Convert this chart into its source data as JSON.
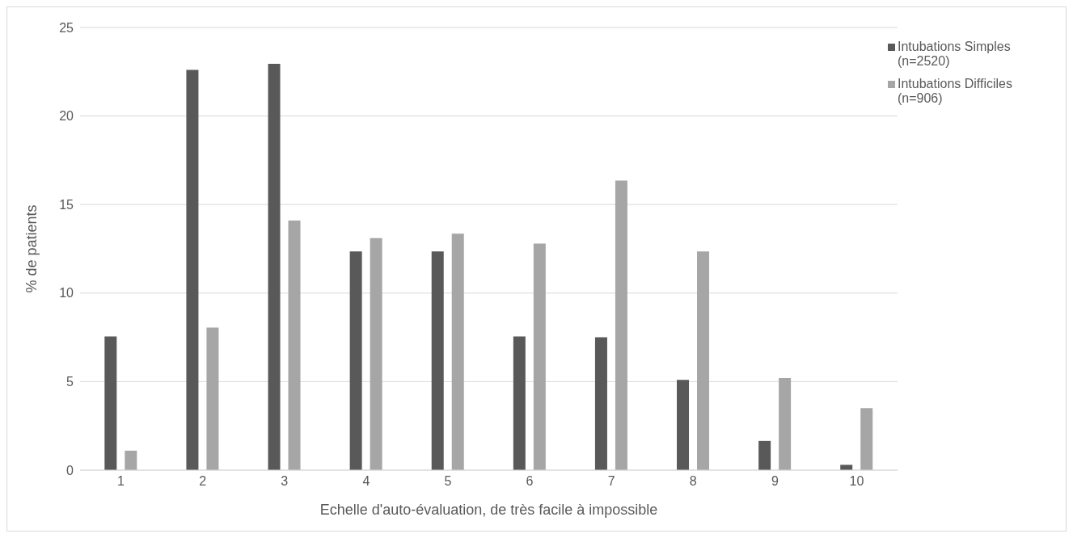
{
  "chart_data": {
    "type": "bar",
    "xlabel": "Echelle d'auto-évaluation, de très facile à impossible",
    "ylabel": "% de patients",
    "categories": [
      "1",
      "2",
      "3",
      "4",
      "5",
      "6",
      "7",
      "8",
      "9",
      "10"
    ],
    "series": [
      {
        "name": "Intubations Simples (n=2520)",
        "color": "#595959",
        "values": [
          7.55,
          22.6,
          22.95,
          12.35,
          12.35,
          7.55,
          7.5,
          5.1,
          1.65,
          0.3
        ]
      },
      {
        "name": "Intubations Difficiles (n=906)",
        "color": "#a6a6a6",
        "values": [
          1.1,
          8.05,
          14.1,
          13.1,
          13.35,
          12.8,
          16.35,
          12.35,
          5.2,
          3.5
        ]
      }
    ],
    "ylim": [
      0,
      25
    ],
    "yticks": [
      0,
      5,
      10,
      15,
      20,
      25
    ],
    "grid": "y",
    "legend": "top right"
  }
}
